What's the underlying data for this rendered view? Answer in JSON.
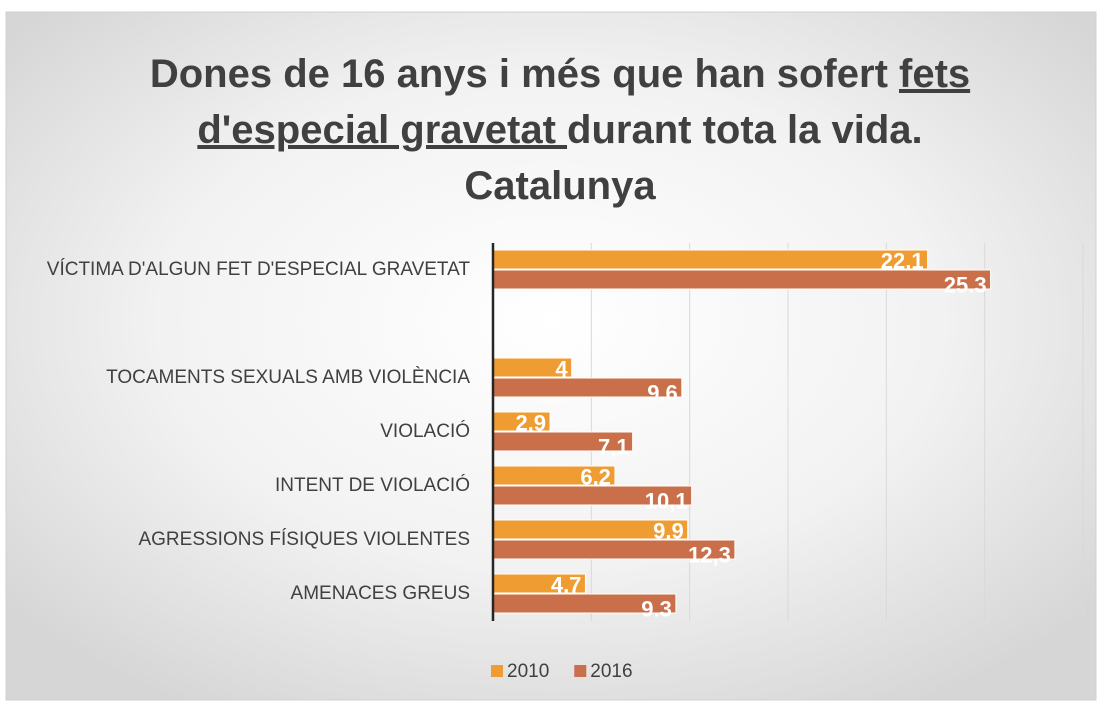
{
  "chart_data": {
    "type": "bar",
    "orientation": "horizontal",
    "title_lines": [
      [
        {
          "text": "Dones de 16 anys i més que han sofert ",
          "underline": false
        },
        {
          "text": "fets",
          "underline": true
        }
      ],
      [
        {
          "text": "d'especial gravetat ",
          "underline": true
        },
        {
          "text": "durant tota la vida.",
          "underline": false
        }
      ],
      [
        {
          "text": "Catalunya",
          "underline": false
        }
      ]
    ],
    "categories": [
      "VÍCTIMA D'ALGUN FET D'ESPECIAL GRAVETAT",
      null,
      "TOCAMENTS SEXUALS AMB VIOLÈNCIA",
      "VIOLACIÓ",
      "INTENT DE VIOLACIÓ",
      "AGRESSIONS FÍSIQUES VIOLENTES",
      "AMENACES GREUS"
    ],
    "series": [
      {
        "name": "2010",
        "color": "#ef9c33",
        "values": [
          22.1,
          null,
          4,
          2.9,
          6.2,
          9.9,
          4.7
        ],
        "value_labels": [
          "22,1",
          null,
          "4",
          "2,9",
          "6,2",
          "9,9",
          "4,7"
        ]
      },
      {
        "name": "2016",
        "color": "#c9704a",
        "values": [
          25.3,
          null,
          9.6,
          7.1,
          10.1,
          12.3,
          9.3
        ],
        "value_labels": [
          "25.3",
          null,
          "9.6",
          "7,1",
          "10,1",
          "12,3",
          "9.3"
        ]
      }
    ],
    "xlim": [
      0,
      30
    ],
    "xticks": [
      0,
      5,
      10,
      15,
      20,
      25,
      30
    ],
    "grid": true,
    "tick_labels": false,
    "legend": "bottom"
  }
}
